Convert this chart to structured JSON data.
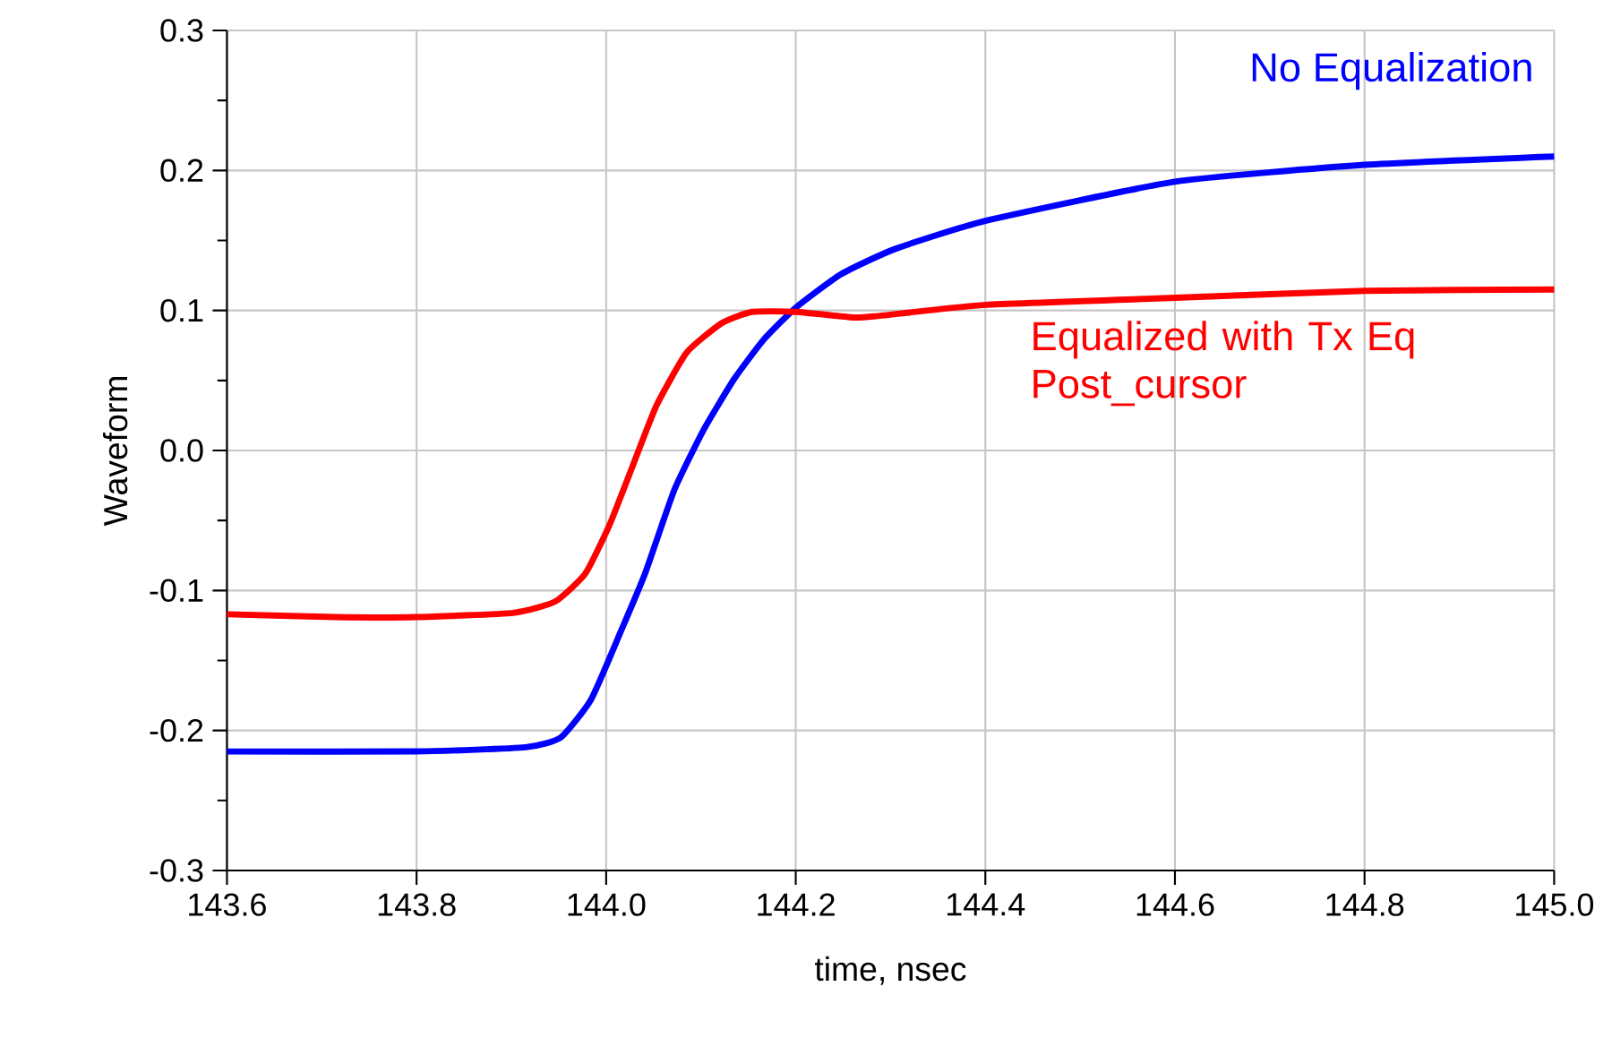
{
  "chart_data": {
    "type": "line",
    "xlabel": "time, nsec",
    "ylabel": "Waveform",
    "xlim": [
      143.6,
      145.0
    ],
    "ylim": [
      -0.3,
      0.3
    ],
    "xticks": [
      {
        "value": 143.6,
        "label": "143.6"
      },
      {
        "value": 143.8,
        "label": "143.8"
      },
      {
        "value": 144.0,
        "label": "144.0"
      },
      {
        "value": 144.2,
        "label": "144.2"
      },
      {
        "value": 144.4,
        "label": "144.4"
      },
      {
        "value": 144.6,
        "label": "144.6"
      },
      {
        "value": 144.8,
        "label": "144.8"
      },
      {
        "value": 145.0,
        "label": "145.0"
      }
    ],
    "yticks": [
      {
        "value": -0.3,
        "label": "-0.3"
      },
      {
        "value": -0.2,
        "label": "-0.2"
      },
      {
        "value": -0.1,
        "label": "-0.1"
      },
      {
        "value": 0,
        "label": "0.0"
      },
      {
        "value": 0.1,
        "label": "0.1"
      },
      {
        "value": 0.2,
        "label": "0.2"
      },
      {
        "value": 0.3,
        "label": "0.3"
      }
    ],
    "grid": true,
    "legend": false,
    "marker": "none",
    "line_style": "solid",
    "series": [
      {
        "name": "No Equalization",
        "color": "#0000ff",
        "x": [
          143.6,
          143.8,
          143.915,
          143.952,
          143.984,
          144.015,
          144.041,
          144.072,
          144.103,
          144.135,
          144.166,
          144.2,
          144.248,
          144.305,
          144.4,
          144.6,
          144.8,
          145.0
        ],
        "values": [
          -0.215,
          -0.215,
          -0.212,
          -0.205,
          -0.178,
          -0.13,
          -0.088,
          -0.028,
          0.015,
          0.051,
          0.079,
          0.102,
          0.126,
          0.144,
          0.164,
          0.192,
          0.204,
          0.21
        ]
      },
      {
        "name": "Equalized with Tx Eq Post_cursor",
        "color": "#ff0000",
        "x": [
          143.6,
          143.714,
          143.8,
          143.902,
          143.946,
          143.978,
          144.003,
          144.028,
          144.053,
          144.085,
          144.122,
          144.154,
          144.2,
          144.261,
          144.286,
          144.4,
          144.6,
          144.8,
          145.0
        ],
        "values": [
          -0.117,
          -0.119,
          -0.119,
          -0.116,
          -0.108,
          -0.088,
          -0.054,
          -0.011,
          0.032,
          0.07,
          0.091,
          0.099,
          0.099,
          0.095,
          0.096,
          0.104,
          0.109,
          0.114,
          0.115
        ]
      }
    ]
  }
}
